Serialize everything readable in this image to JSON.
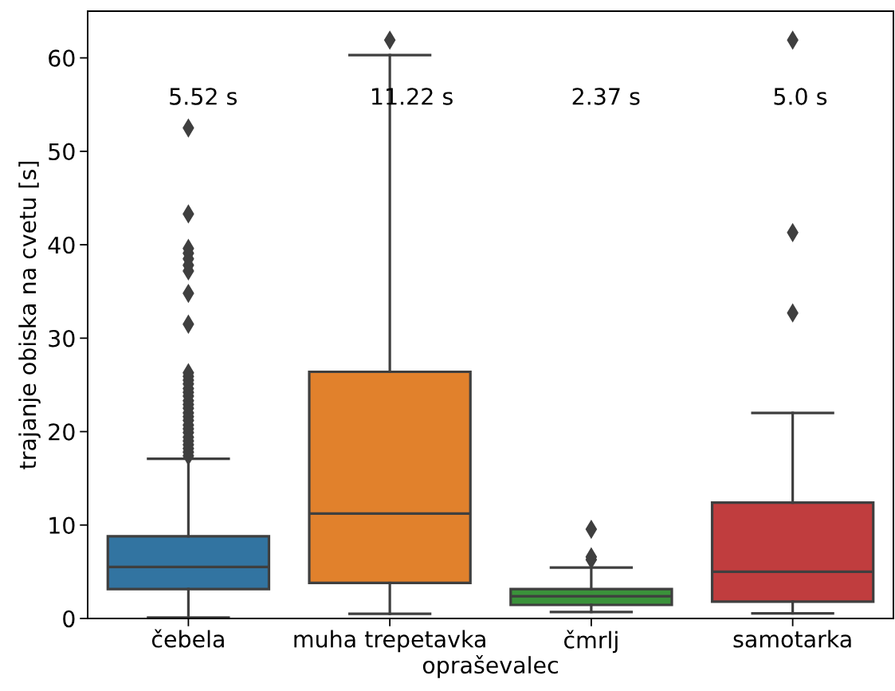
{
  "chart_data": {
    "type": "box",
    "xlabel": "opraševalec",
    "ylabel": "trajanje obiska na cvetu [s]",
    "categories": [
      "čebela",
      "muha trepetavka",
      "čmrlj",
      "samotarka"
    ],
    "colors": [
      "#3274a1",
      "#e1812c",
      "#3a923a",
      "#c03d3e"
    ],
    "boxes": [
      {
        "low": 0.1,
        "q1": 3.15,
        "median": 5.52,
        "q3": 8.8,
        "high": 17.1,
        "outliers": [
          17.4,
          17.8,
          18.2,
          18.6,
          19.0,
          19.4,
          19.9,
          20.3,
          20.7,
          21.2,
          21.6,
          22.0,
          22.5,
          22.9,
          23.3,
          23.8,
          24.2,
          24.6,
          25.1,
          25.5,
          25.9,
          26.3,
          31.5,
          34.8,
          37.2,
          37.8,
          38.5,
          39.1,
          39.6,
          43.3,
          52.5
        ]
      },
      {
        "low": 0.5,
        "q1": 3.8,
        "median": 11.22,
        "q3": 26.4,
        "high": 60.3,
        "outliers": [
          61.9
        ]
      },
      {
        "low": 0.7,
        "q1": 1.45,
        "median": 2.37,
        "q3": 3.15,
        "high": 5.45,
        "outliers": [
          6.3,
          6.6,
          9.55
        ]
      },
      {
        "low": 0.55,
        "q1": 1.8,
        "median": 5.0,
        "q3": 12.4,
        "high": 22.0,
        "outliers": [
          32.7,
          41.3,
          61.9
        ]
      }
    ],
    "ylim": [
      0,
      65
    ],
    "yticks": [
      0,
      10,
      20,
      30,
      40,
      50,
      60
    ],
    "marker": "diamond",
    "annotations": [
      "5.52 s",
      "11.22 s",
      "2.37 s",
      "5.0 s"
    ]
  }
}
